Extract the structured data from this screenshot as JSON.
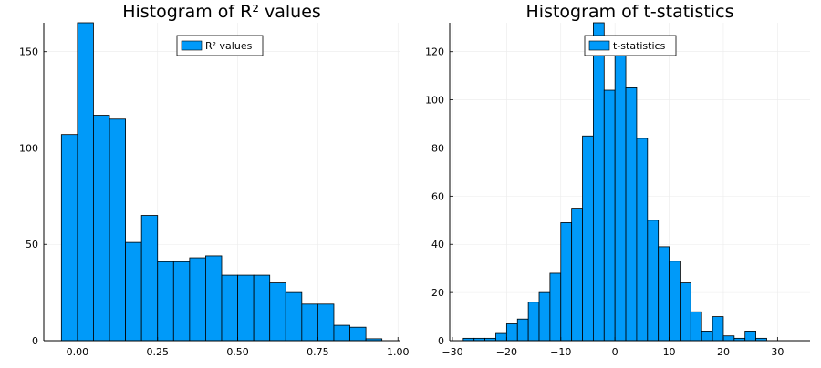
{
  "colors": {
    "bar": "#009af9",
    "edge": "#000000",
    "grid": "#ebebeb",
    "text": "#000000"
  },
  "chart_data": [
    {
      "type": "bar",
      "title": "Histogram of R² values",
      "xlabel": "",
      "ylabel": "",
      "xlim": [
        -0.105,
        1.005
      ],
      "ylim": [
        0,
        165
      ],
      "xticks": [
        0.0,
        0.25,
        0.5,
        0.75,
        1.0
      ],
      "xtick_labels": [
        "0.00",
        "0.25",
        "0.50",
        "0.75",
        "1.00"
      ],
      "yticks": [
        0,
        50,
        100,
        150
      ],
      "ytick_labels": [
        "0",
        "50",
        "100",
        "150"
      ],
      "grid": true,
      "legend": {
        "position": "top-center",
        "entries": [
          "R² values"
        ]
      },
      "bin_edges": [
        -0.05,
        0.0,
        0.05,
        0.1,
        0.15,
        0.2,
        0.25,
        0.3,
        0.35,
        0.4,
        0.45,
        0.5,
        0.55,
        0.6,
        0.65,
        0.7,
        0.75,
        0.8,
        0.85,
        0.9,
        0.95
      ],
      "counts": [
        107,
        165,
        117,
        115,
        51,
        65,
        41,
        41,
        43,
        44,
        34,
        34,
        34,
        30,
        25,
        19,
        19,
        8,
        7,
        1
      ]
    },
    {
      "type": "bar",
      "title": "Histogram of t-statistics",
      "xlabel": "",
      "ylabel": "",
      "xlim": [
        -30.5,
        36
      ],
      "ylim": [
        0,
        132
      ],
      "xticks": [
        -30,
        -20,
        -10,
        0,
        10,
        20,
        30
      ],
      "xtick_labels": [
        "−30",
        "−20",
        "−10",
        "0",
        "10",
        "20",
        "30"
      ],
      "yticks": [
        0,
        20,
        40,
        60,
        80,
        100,
        120
      ],
      "ytick_labels": [
        "0",
        "20",
        "40",
        "60",
        "80",
        "100",
        "120"
      ],
      "grid": true,
      "legend": {
        "position": "top-center",
        "entries": [
          "t-statistics"
        ]
      },
      "bin_edges": [
        -28,
        -26,
        -24,
        -22,
        -20,
        -18,
        -16,
        -14,
        -12,
        -10,
        -8,
        -6,
        -4,
        -2,
        0,
        2,
        4,
        6,
        8,
        10,
        12,
        14,
        16,
        18,
        20,
        22,
        24,
        26,
        28,
        30,
        32
      ],
      "counts": [
        1,
        1,
        1,
        3,
        7,
        9,
        16,
        20,
        28,
        49,
        55,
        85,
        132,
        104,
        120,
        105,
        84,
        50,
        39,
        33,
        24,
        12,
        4,
        10,
        2,
        1,
        4,
        1,
        0,
        0
      ]
    }
  ]
}
